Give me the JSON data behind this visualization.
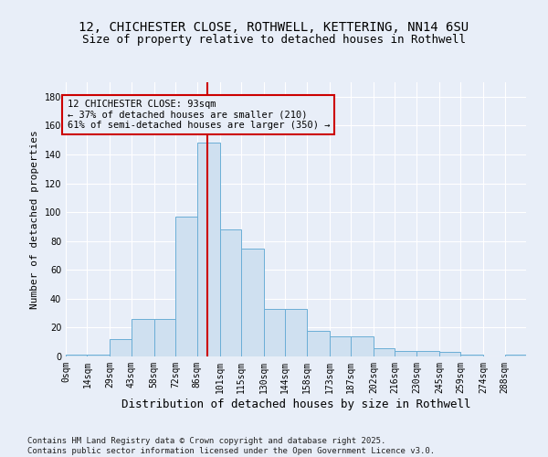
{
  "title1": "12, CHICHESTER CLOSE, ROTHWELL, KETTERING, NN14 6SU",
  "title2": "Size of property relative to detached houses in Rothwell",
  "xlabel": "Distribution of detached houses by size in Rothwell",
  "ylabel": "Number of detached properties",
  "property_size": 93,
  "annotation_line0": "12 CHICHESTER CLOSE: 93sqm",
  "annotation_line1": "← 37% of detached houses are smaller (210)",
  "annotation_line2": "61% of semi-detached houses are larger (350) →",
  "bin_edges": [
    0,
    14,
    29,
    43,
    58,
    72,
    86,
    101,
    115,
    130,
    144,
    158,
    173,
    187,
    202,
    216,
    230,
    245,
    259,
    274,
    288,
    302
  ],
  "bin_labels": [
    "0sqm",
    "14sqm",
    "29sqm",
    "43sqm",
    "58sqm",
    "72sqm",
    "86sqm",
    "101sqm",
    "115sqm",
    "130sqm",
    "144sqm",
    "158sqm",
    "173sqm",
    "187sqm",
    "202sqm",
    "216sqm",
    "230sqm",
    "245sqm",
    "259sqm",
    "274sqm",
    "288sqm"
  ],
  "counts": [
    1,
    1,
    12,
    26,
    26,
    97,
    148,
    88,
    75,
    33,
    33,
    18,
    14,
    14,
    6,
    4,
    4,
    3,
    1,
    0,
    1
  ],
  "bar_color": "#cfe0f0",
  "bar_edge_color": "#6baed6",
  "line_color": "#cc0000",
  "background_color": "#e8eef8",
  "grid_color": "#ffffff",
  "ylim": [
    0,
    190
  ],
  "yticks": [
    0,
    20,
    40,
    60,
    80,
    100,
    120,
    140,
    160,
    180
  ],
  "footer": "Contains HM Land Registry data © Crown copyright and database right 2025.\nContains public sector information licensed under the Open Government Licence v3.0.",
  "title1_fontsize": 10,
  "title2_fontsize": 9,
  "xlabel_fontsize": 9,
  "ylabel_fontsize": 8,
  "tick_fontsize": 7,
  "annotation_fontsize": 7.5,
  "footer_fontsize": 6.5
}
